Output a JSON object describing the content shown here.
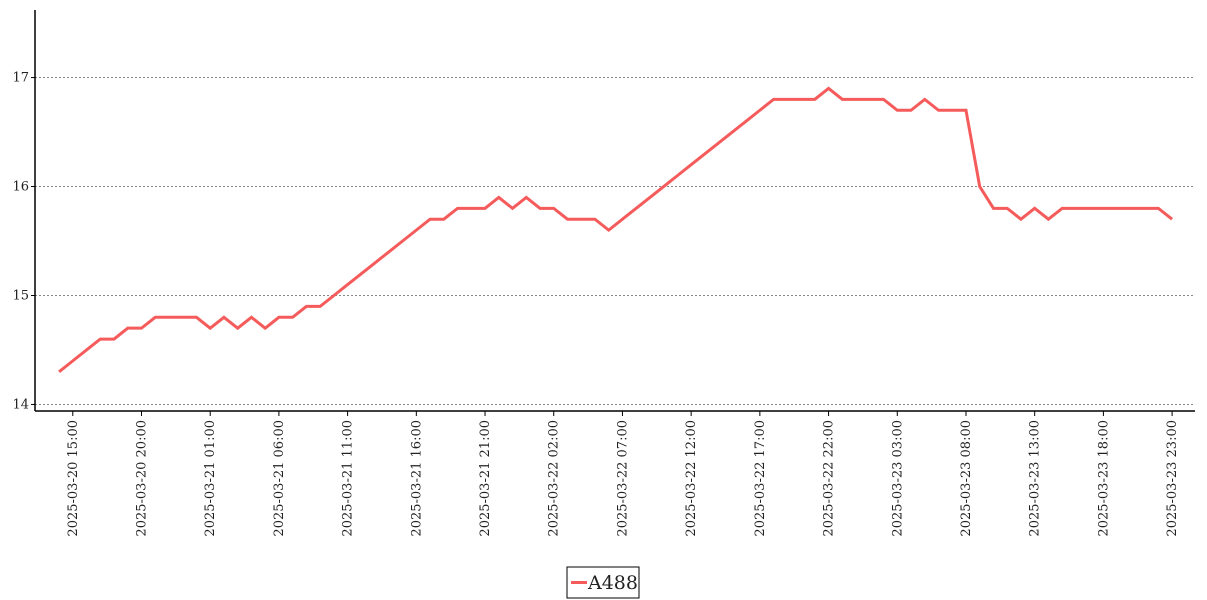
{
  "chart_data": {
    "type": "line",
    "x": [
      "2025-03-20 14:00",
      "2025-03-20 15:00",
      "2025-03-20 16:00",
      "2025-03-20 17:00",
      "2025-03-20 18:00",
      "2025-03-20 19:00",
      "2025-03-20 20:00",
      "2025-03-20 21:00",
      "2025-03-20 22:00",
      "2025-03-20 23:00",
      "2025-03-21 00:00",
      "2025-03-21 01:00",
      "2025-03-21 02:00",
      "2025-03-21 03:00",
      "2025-03-21 04:00",
      "2025-03-21 05:00",
      "2025-03-21 06:00",
      "2025-03-21 07:00",
      "2025-03-21 08:00",
      "2025-03-21 09:00",
      "2025-03-21 10:00",
      "2025-03-21 11:00",
      "2025-03-21 12:00",
      "2025-03-21 13:00",
      "2025-03-21 14:00",
      "2025-03-21 15:00",
      "2025-03-21 16:00",
      "2025-03-21 17:00",
      "2025-03-21 18:00",
      "2025-03-21 19:00",
      "2025-03-21 20:00",
      "2025-03-21 21:00",
      "2025-03-21 22:00",
      "2025-03-21 23:00",
      "2025-03-22 00:00",
      "2025-03-22 01:00",
      "2025-03-22 02:00",
      "2025-03-22 03:00",
      "2025-03-22 04:00",
      "2025-03-22 05:00",
      "2025-03-22 06:00",
      "2025-03-22 07:00",
      "2025-03-22 08:00",
      "2025-03-22 09:00",
      "2025-03-22 10:00",
      "2025-03-22 11:00",
      "2025-03-22 12:00",
      "2025-03-22 13:00",
      "2025-03-22 14:00",
      "2025-03-22 15:00",
      "2025-03-22 16:00",
      "2025-03-22 17:00",
      "2025-03-22 18:00",
      "2025-03-22 19:00",
      "2025-03-22 20:00",
      "2025-03-22 21:00",
      "2025-03-22 22:00",
      "2025-03-22 23:00",
      "2025-03-23 00:00",
      "2025-03-23 01:00",
      "2025-03-23 02:00",
      "2025-03-23 03:00",
      "2025-03-23 04:00",
      "2025-03-23 05:00",
      "2025-03-23 06:00",
      "2025-03-23 07:00",
      "2025-03-23 08:00",
      "2025-03-23 09:00",
      "2025-03-23 10:00",
      "2025-03-23 11:00",
      "2025-03-23 12:00",
      "2025-03-23 13:00",
      "2025-03-23 14:00",
      "2025-03-23 15:00",
      "2025-03-23 16:00",
      "2025-03-23 17:00",
      "2025-03-23 18:00",
      "2025-03-23 19:00",
      "2025-03-23 20:00",
      "2025-03-23 21:00",
      "2025-03-23 22:00",
      "2025-03-23 23:00"
    ],
    "series": [
      {
        "name": "A488",
        "color": "#f55b5b",
        "values": [
          14.3,
          14.4,
          14.5,
          14.6,
          14.6,
          14.7,
          14.7,
          14.8,
          14.8,
          14.8,
          14.8,
          14.7,
          14.8,
          14.7,
          14.8,
          14.7,
          14.8,
          14.8,
          14.9,
          14.9,
          15.0,
          15.1,
          15.2,
          15.3,
          15.4,
          15.5,
          15.6,
          15.7,
          15.7,
          15.8,
          15.8,
          15.8,
          15.9,
          15.8,
          15.9,
          15.8,
          15.8,
          15.7,
          15.7,
          15.7,
          15.6,
          15.7,
          15.8,
          15.9,
          16.0,
          16.1,
          16.2,
          16.3,
          16.4,
          16.5,
          16.6,
          16.7,
          16.8,
          16.8,
          16.8,
          16.8,
          16.9,
          16.8,
          16.8,
          16.8,
          16.8,
          16.7,
          16.7,
          16.8,
          16.7,
          16.7,
          16.7,
          16.0,
          15.8,
          15.8,
          15.7,
          15.8,
          15.7,
          15.8,
          15.8,
          15.8,
          15.8,
          15.8,
          15.8,
          15.8,
          15.8,
          15.7
        ]
      }
    ],
    "xlim": [
      "2025-03-20 12:15",
      "2025-03-24 00:40"
    ],
    "xticks": [
      "2025-03-20 15:00",
      "2025-03-20 20:00",
      "2025-03-21 01:00",
      "2025-03-21 06:00",
      "2025-03-21 11:00",
      "2025-03-21 16:00",
      "2025-03-21 21:00",
      "2025-03-22 02:00",
      "2025-03-22 07:00",
      "2025-03-22 12:00",
      "2025-03-22 17:00",
      "2025-03-22 22:00",
      "2025-03-23 03:00",
      "2025-03-23 08:00",
      "2025-03-23 13:00",
      "2025-03-23 18:00",
      "2025-03-23 23:00"
    ],
    "ylim": [
      13.94,
      17.62
    ],
    "yticks": [
      14,
      15,
      16,
      17
    ],
    "grid": true,
    "legend": "bottom"
  }
}
